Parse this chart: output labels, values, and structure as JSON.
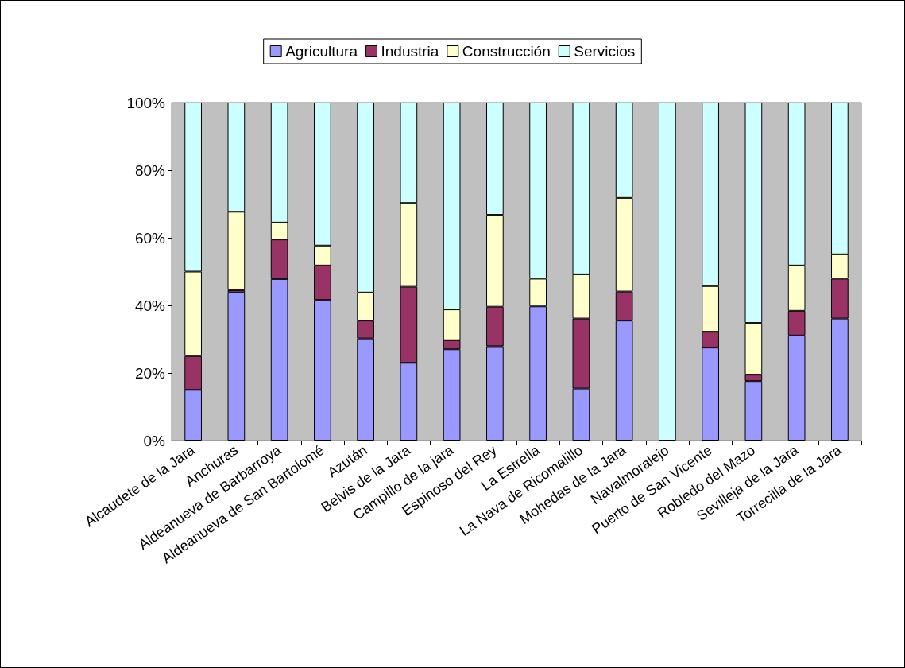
{
  "chart_data": {
    "type": "bar",
    "stacked": true,
    "categories": [
      "Alcaudete de la Jara",
      "Anchuras",
      "Aldeanueva de Barbarroya",
      "Aldeanueva de San Bartolomé",
      "Azután",
      "Belvis de la Jara",
      "Campillo de la jara",
      "Espinoso del Rey",
      "La Estrella",
      "La Nava de Ricomalillo",
      "Mohedas de la Jara",
      "Navalmoralejo",
      "Puerto de San Vicente",
      "Robledo del Mazo",
      "Sevilleja de la Jara",
      "Torrecilla de la Jara"
    ],
    "series": [
      {
        "name": "Agricultura",
        "color": "#9999ff",
        "values": [
          15,
          43.8,
          47.8,
          41.6,
          30.2,
          23,
          27,
          27.9,
          39.7,
          15.4,
          35.5,
          0,
          27.5,
          17.6,
          31.1,
          36.1
        ]
      },
      {
        "name": "Industria",
        "color": "#993366",
        "values": [
          10,
          0.7,
          11.7,
          10.2,
          5.3,
          22.5,
          2.7,
          11.7,
          0,
          20.7,
          8.6,
          0,
          4.7,
          1.9,
          7.3,
          11.8
        ]
      },
      {
        "name": "Construcción",
        "color": "#ffffcc",
        "values": [
          25,
          23.2,
          5,
          5.9,
          8.3,
          24.8,
          9.1,
          27.2,
          8.2,
          13.1,
          27.7,
          0,
          13.5,
          15.3,
          13.4,
          7.2
        ]
      },
      {
        "name": "Servicios",
        "color": "#ccffff",
        "values": [
          50,
          32.3,
          35.5,
          42.3,
          56.2,
          29.7,
          61.2,
          33.2,
          52.1,
          50.8,
          28.2,
          100,
          54.3,
          65.2,
          48.2,
          44.9
        ]
      }
    ],
    "ylim": [
      0,
      100
    ],
    "yticks": [
      {
        "value": 0,
        "label": "0%"
      },
      {
        "value": 20,
        "label": "20%"
      },
      {
        "value": 40,
        "label": "40%"
      },
      {
        "value": 60,
        "label": "60%"
      },
      {
        "value": 80,
        "label": "80%"
      },
      {
        "value": 100,
        "label": "100%"
      }
    ],
    "grid": false,
    "legend": "top"
  }
}
